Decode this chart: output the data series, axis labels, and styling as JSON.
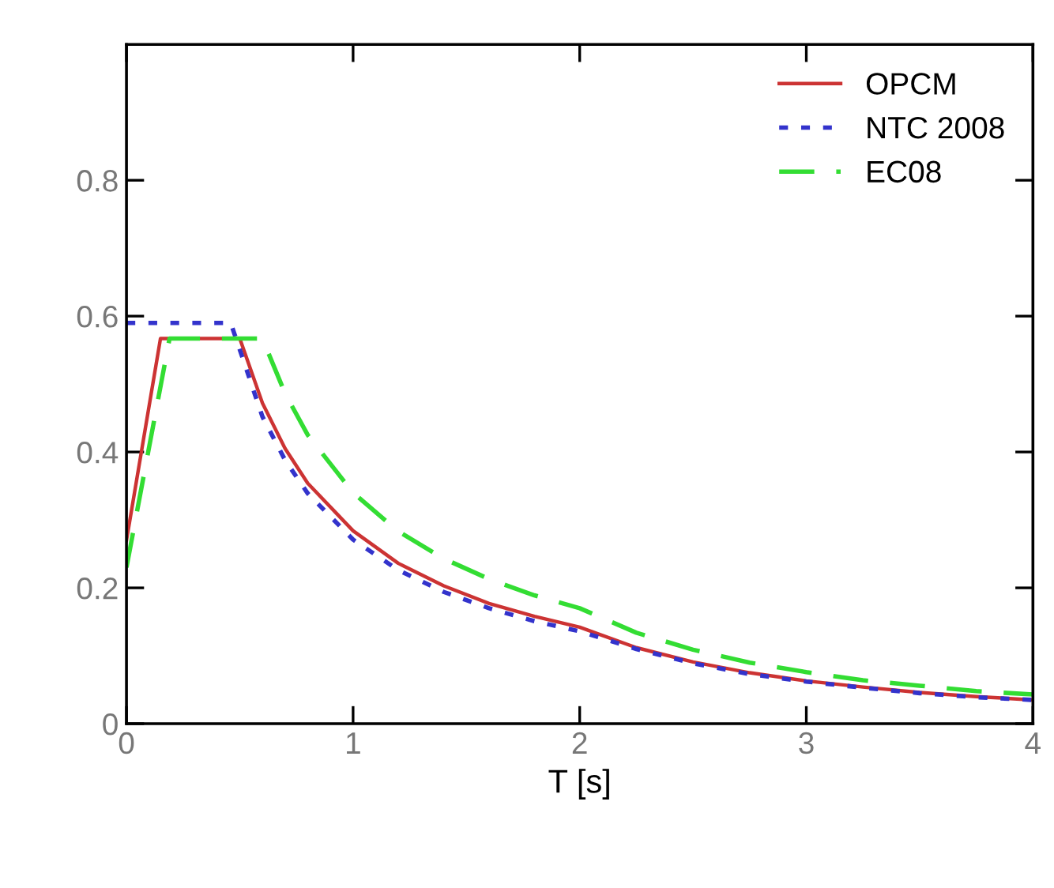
{
  "chart_data": {
    "type": "line",
    "xlabel": "T [s]",
    "xlim": [
      0,
      4
    ],
    "xticks": [
      0,
      1,
      2,
      3,
      4
    ],
    "ylim": [
      0,
      1
    ],
    "yticks": [
      0,
      0.2,
      0.4,
      0.6,
      0.8
    ],
    "grid": false,
    "legend": "top right",
    "series": [
      {
        "name": "OPCM",
        "color": "#cc3333",
        "line_style": "solid",
        "x": [
          0,
          0.15,
          0.5,
          0.6,
          0.7,
          0.8,
          1,
          1.2,
          1.4,
          1.6,
          1.8,
          2,
          2.25,
          2.5,
          2.75,
          3,
          3.25,
          3.5,
          3.75,
          4
        ],
        "values": [
          0.27,
          0.567,
          0.567,
          0.472,
          0.405,
          0.354,
          0.284,
          0.236,
          0.203,
          0.177,
          0.158,
          0.142,
          0.112,
          0.091,
          0.075,
          0.063,
          0.054,
          0.046,
          0.04,
          0.035
        ]
      },
      {
        "name": "NTC 2008",
        "color": "#3333cc",
        "line_style": "dotted",
        "x": [
          0,
          0.46,
          0.6,
          0.7,
          0.8,
          1,
          1.2,
          1.4,
          1.6,
          1.8,
          2,
          2.25,
          2.5,
          2.75,
          3,
          3.25,
          3.5,
          3.75,
          4
        ],
        "values": [
          0.59,
          0.59,
          0.452,
          0.388,
          0.339,
          0.271,
          0.226,
          0.194,
          0.17,
          0.151,
          0.136,
          0.11,
          0.089,
          0.073,
          0.062,
          0.053,
          0.045,
          0.039,
          0.035
        ]
      },
      {
        "name": "EC08",
        "color": "#33dd33",
        "line_style": "dashed",
        "x": [
          0,
          0.19,
          0.6,
          0.7,
          0.8,
          1,
          1.2,
          1.4,
          1.6,
          1.8,
          2,
          2.25,
          2.5,
          2.75,
          3,
          3.25,
          3.5,
          3.75,
          4
        ],
        "values": [
          0.23,
          0.567,
          0.567,
          0.486,
          0.425,
          0.34,
          0.283,
          0.243,
          0.213,
          0.189,
          0.17,
          0.134,
          0.109,
          0.09,
          0.076,
          0.064,
          0.056,
          0.048,
          0.043
        ]
      }
    ]
  }
}
